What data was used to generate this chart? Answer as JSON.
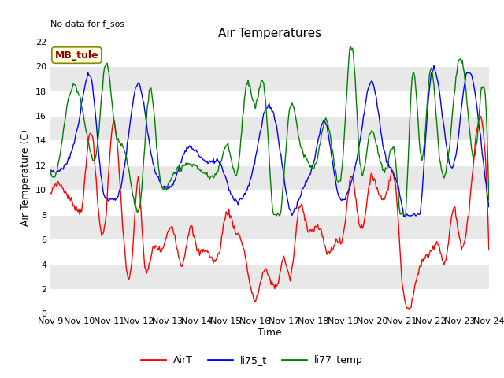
{
  "title": "Air Temperatures",
  "xlabel": "Time",
  "ylabel": "Air Temperature (C)",
  "annotation": "No data for f_sos",
  "legend_label": "MB_tule",
  "ylim": [
    0,
    22
  ],
  "yticks": [
    0,
    2,
    4,
    6,
    8,
    10,
    12,
    14,
    16,
    18,
    20,
    22
  ],
  "xtick_labels": [
    "Nov 9",
    "Nov 10",
    "Nov 11",
    "Nov 12",
    "Nov 13",
    "Nov 14",
    "Nov 15",
    "Nov 16",
    "Nov 17",
    "Nov 18",
    "Nov 19",
    "Nov 20",
    "Nov 21",
    "Nov 22",
    "Nov 23",
    "Nov 24"
  ],
  "line_colors": [
    "red",
    "blue",
    "green"
  ],
  "line_labels": [
    "AirT",
    "li75_t",
    "li77_temp"
  ],
  "fig_facecolor": "#ffffff",
  "plot_facecolor": "#f0f0f0",
  "stripe_color": "#e0e0e0",
  "n_points": 480
}
